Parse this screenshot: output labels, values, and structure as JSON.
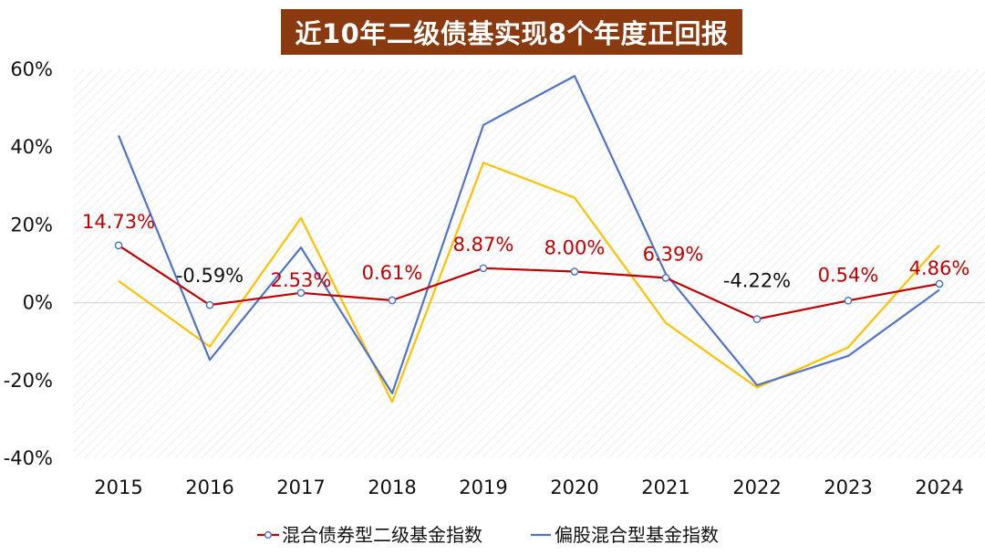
{
  "chart_data": {
    "type": "line",
    "title": "近10年二级债基实现8个年度正回报",
    "categories": [
      "2015",
      "2016",
      "2017",
      "2018",
      "2019",
      "2020",
      "2021",
      "2022",
      "2023",
      "2024"
    ],
    "ylim": [
      -40,
      60
    ],
    "yticks": [
      "-40%",
      "-20%",
      "0%",
      "20%",
      "40%",
      "60%"
    ],
    "ytick_values": [
      -40,
      -20,
      0,
      20,
      40,
      60
    ],
    "grid": "diagonal-hatch-background",
    "legend_position": "bottom",
    "series": [
      {
        "name": "混合债券型二级基金指数",
        "color": "#c00000",
        "marker": "circle",
        "values": [
          14.73,
          -0.59,
          2.53,
          0.61,
          8.87,
          8.0,
          6.39,
          -4.22,
          0.54,
          4.86
        ],
        "labels": [
          "14.73%",
          "-0.59%",
          "2.53%",
          "0.61%",
          "8.87%",
          "8.00%",
          "6.39%",
          "-4.22%",
          "0.54%",
          "4.86%"
        ],
        "label_colors": [
          "#c00000",
          "#111111",
          "#c00000",
          "#c00000",
          "#c00000",
          "#c00000",
          "#c00000",
          "#111111",
          "#c00000",
          "#c00000"
        ]
      },
      {
        "name": "偏股混合型基金指数",
        "color": "#4f74c8",
        "values": [
          43.0,
          -14.7,
          14.2,
          -23.3,
          45.7,
          58.3,
          7.4,
          -21.2,
          -13.7,
          3.3
        ]
      },
      {
        "color": "#ffc000",
        "values": [
          5.6,
          -11.3,
          21.8,
          -25.5,
          36.0,
          27.0,
          -5.2,
          -21.8,
          -11.5,
          14.8
        ]
      }
    ]
  }
}
